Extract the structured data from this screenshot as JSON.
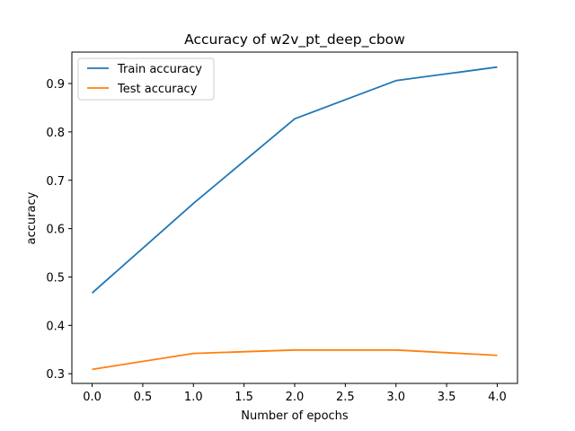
{
  "chart_data": {
    "type": "line",
    "title": "Accuracy of w2v_pt_deep_cbow",
    "xlabel": "Number of epochs",
    "ylabel": "accuracy",
    "x": [
      0,
      1,
      2,
      3,
      4
    ],
    "xticks": [
      "0.0",
      "0.5",
      "1.0",
      "1.5",
      "2.0",
      "2.5",
      "3.0",
      "3.5",
      "4.0"
    ],
    "yticks": [
      "0.3",
      "0.4",
      "0.5",
      "0.6",
      "0.7",
      "0.8",
      "0.9"
    ],
    "xlim": [
      -0.2,
      4.2
    ],
    "ylim": [
      0.28,
      0.965
    ],
    "grid": false,
    "legend_position": "upper-left",
    "series": [
      {
        "name": "Train accuracy",
        "color": "#1f77b4",
        "values": [
          0.467,
          0.652,
          0.827,
          0.906,
          0.934
        ]
      },
      {
        "name": "Test accuracy",
        "color": "#ff7f0e",
        "values": [
          0.309,
          0.342,
          0.349,
          0.349,
          0.338
        ]
      }
    ]
  }
}
